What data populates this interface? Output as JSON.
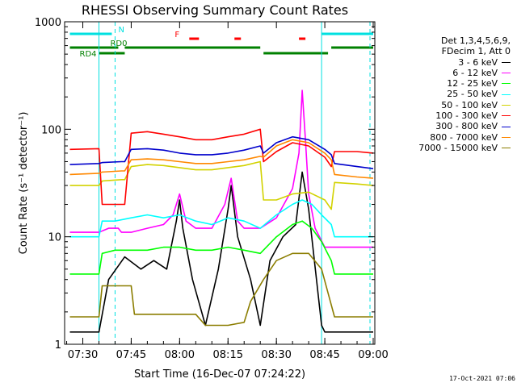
{
  "chart_data": {
    "type": "line",
    "title": "RHESSI Observing Summary Count Rates",
    "xlabel": "Start Time (16-Dec-07 07:24:22)",
    "ylabel": "Count Rate (s⁻¹ detector⁻¹)",
    "y_scale": "log",
    "ylim": [
      1,
      1000
    ],
    "xlim": [
      "07:24:22",
      "09:00:30"
    ],
    "x_ticks": [
      "07:30",
      "07:45",
      "08:00",
      "08:15",
      "08:30",
      "08:45",
      "09:00"
    ],
    "y_ticks": [
      "1",
      "10",
      "100",
      "1000"
    ],
    "grid": false,
    "legend_position": "right",
    "legend_header": [
      "Det 1,3,4,5,6,9,",
      "FDecim 1, Att 0"
    ],
    "series": [
      {
        "name": "3 - 6 keV",
        "color": "#000000",
        "x": [
          "07:26",
          "07:35",
          "07:38",
          "07:43",
          "07:48",
          "07:52",
          "07:56",
          "07:59",
          "08:00",
          "08:01",
          "08:04",
          "08:08",
          "08:12",
          "08:15",
          "08:16",
          "08:18",
          "08:22",
          "08:25",
          "08:28",
          "08:32",
          "08:36",
          "08:38",
          "08:40",
          "08:44",
          "08:45",
          "08:46",
          "08:50",
          "08:55",
          "09:00"
        ],
        "y": [
          1.3,
          1.3,
          4,
          6.5,
          5,
          6,
          5,
          14,
          22,
          12,
          4,
          1.5,
          5,
          18,
          30,
          10,
          4,
          1.5,
          6,
          10,
          13,
          40,
          18,
          1.5,
          1.3,
          1.3,
          1.3,
          1.3,
          1.3
        ]
      },
      {
        "name": "6 - 12 keV",
        "color": "#ff00ff",
        "x": [
          "07:26",
          "07:35",
          "07:38",
          "07:41",
          "07:42",
          "07:45",
          "07:50",
          "07:55",
          "07:58",
          "08:00",
          "08:02",
          "08:05",
          "08:10",
          "08:14",
          "08:16",
          "08:18",
          "08:20",
          "08:25",
          "08:30",
          "08:35",
          "08:37",
          "08:38",
          "08:39",
          "08:40",
          "08:42",
          "08:45",
          "08:47",
          "08:50",
          "09:00"
        ],
        "y": [
          11,
          11,
          12,
          12,
          11,
          11,
          12,
          13,
          16,
          25,
          14,
          12,
          12,
          20,
          35,
          14,
          12,
          12,
          15,
          28,
          60,
          230,
          80,
          25,
          12,
          8,
          8,
          8,
          8
        ]
      },
      {
        "name": "12 - 25 keV",
        "color": "#00ff00",
        "x": [
          "07:26",
          "07:35",
          "07:36",
          "07:40",
          "07:45",
          "07:50",
          "07:55",
          "08:00",
          "08:05",
          "08:10",
          "08:15",
          "08:20",
          "08:25",
          "08:30",
          "08:35",
          "08:38",
          "08:41",
          "08:44",
          "08:47",
          "08:48",
          "08:55",
          "09:00"
        ],
        "y": [
          4.5,
          4.5,
          7,
          7.5,
          7.5,
          7.5,
          8,
          8,
          7.5,
          7.5,
          8,
          7.5,
          7,
          10,
          13,
          14,
          12,
          9,
          6,
          4.5,
          4.5,
          4.5
        ]
      },
      {
        "name": "25 - 50 keV",
        "color": "#00ffff",
        "x": [
          "07:26",
          "07:35",
          "07:36",
          "07:40",
          "07:45",
          "07:50",
          "07:55",
          "08:00",
          "08:05",
          "08:10",
          "08:15",
          "08:20",
          "08:25",
          "08:30",
          "08:35",
          "08:38",
          "08:41",
          "08:44",
          "08:47",
          "08:48",
          "08:55",
          "09:00"
        ],
        "y": [
          10,
          10,
          14,
          14,
          15,
          16,
          15,
          16,
          14,
          13,
          15,
          14,
          12,
          16,
          20,
          22,
          20,
          16,
          13,
          10,
          10,
          10
        ]
      },
      {
        "name": "50 - 100 keV",
        "color": "#d2d200",
        "x": [
          "07:26",
          "07:35",
          "07:36",
          "07:42",
          "07:43",
          "07:45",
          "07:50",
          "07:55",
          "08:00",
          "08:05",
          "08:10",
          "08:15",
          "08:20",
          "08:25",
          "08:26",
          "08:30",
          "08:35",
          "08:40",
          "08:45",
          "08:47",
          "08:48",
          "08:55",
          "09:00"
        ],
        "y": [
          30,
          30,
          33,
          34,
          34,
          45,
          47,
          46,
          44,
          42,
          42,
          44,
          46,
          50,
          22,
          22,
          25,
          26,
          22,
          18,
          32,
          31,
          30
        ]
      },
      {
        "name": "100 - 300 keV",
        "color": "#ff0000",
        "x": [
          "07:26",
          "07:35",
          "07:36",
          "07:42",
          "07:43",
          "07:45",
          "07:50",
          "07:55",
          "08:00",
          "08:05",
          "08:10",
          "08:15",
          "08:20",
          "08:25",
          "08:26",
          "08:30",
          "08:35",
          "08:40",
          "08:45",
          "08:47",
          "08:48",
          "08:55",
          "09:00"
        ],
        "y": [
          65,
          66,
          20,
          20,
          20,
          92,
          95,
          90,
          85,
          80,
          80,
          85,
          90,
          100,
          50,
          62,
          75,
          70,
          55,
          45,
          62,
          62,
          60
        ]
      },
      {
        "name": "300 - 800 keV",
        "color": "#0000cc",
        "x": [
          "07:26",
          "07:35",
          "07:36",
          "07:42",
          "07:43",
          "07:45",
          "07:50",
          "07:55",
          "08:00",
          "08:05",
          "08:10",
          "08:15",
          "08:20",
          "08:25",
          "08:26",
          "08:30",
          "08:35",
          "08:40",
          "08:45",
          "08:47",
          "08:48",
          "08:55",
          "09:00"
        ],
        "y": [
          47,
          48,
          49,
          50,
          50,
          65,
          66,
          64,
          60,
          58,
          58,
          60,
          64,
          70,
          60,
          75,
          85,
          80,
          65,
          58,
          48,
          45,
          43
        ]
      },
      {
        "name": "800 - 7000 keV",
        "color": "#ff8800",
        "x": [
          "07:26",
          "07:35",
          "07:36",
          "07:42",
          "07:43",
          "07:45",
          "07:50",
          "07:55",
          "08:00",
          "08:05",
          "08:10",
          "08:15",
          "08:20",
          "08:25",
          "08:26",
          "08:30",
          "08:35",
          "08:40",
          "08:45",
          "08:47",
          "08:48",
          "08:55",
          "09:00"
        ],
        "y": [
          38,
          39,
          40,
          41,
          41,
          52,
          53,
          52,
          50,
          48,
          48,
          50,
          52,
          56,
          55,
          70,
          80,
          75,
          60,
          52,
          38,
          36,
          35
        ]
      },
      {
        "name": "7000 - 15000 keV",
        "color": "#8b7d00",
        "x": [
          "07:26",
          "07:35",
          "07:36",
          "07:45",
          "07:46",
          "07:50",
          "07:55",
          "08:00",
          "08:05",
          "08:08",
          "08:10",
          "08:15",
          "08:20",
          "08:22",
          "08:26",
          "08:30",
          "08:35",
          "08:40",
          "08:44",
          "08:46",
          "08:48",
          "08:55",
          "09:00"
        ],
        "y": [
          1.8,
          1.8,
          3.5,
          3.5,
          1.9,
          1.9,
          1.9,
          1.9,
          1.9,
          1.5,
          1.5,
          1.5,
          1.6,
          2.5,
          4,
          6,
          7,
          7,
          5,
          3,
          1.8,
          1.8,
          1.8
        ]
      }
    ],
    "annotations": [
      {
        "label": "N",
        "color": "#00e0e0",
        "ranges": [
          [
            "07:26",
            "07:39"
          ],
          [
            "08:44",
            "09:00"
          ]
        ]
      },
      {
        "label": "F",
        "color": "#ff0000",
        "ranges": [
          [
            "08:03",
            "08:06"
          ],
          [
            "08:17",
            "08:19"
          ],
          [
            "08:37",
            "08:39"
          ]
        ]
      },
      {
        "label": "RD0",
        "color": "#008000",
        "ranges": [
          [
            "07:26",
            "07:41"
          ]
        ]
      },
      {
        "label": "RD4",
        "color": "#008000",
        "ranges": [
          [
            "07:35",
            "07:43"
          ]
        ]
      }
    ],
    "extra_green_bars": [
      [
        "07:43",
        "08:25"
      ],
      [
        "08:26",
        "08:46"
      ],
      [
        "08:47",
        "09:00"
      ]
    ],
    "vlines_solid": [
      "07:35",
      "08:44"
    ],
    "vlines_dashed": [
      "07:40",
      "08:59"
    ]
  },
  "footer": {
    "stamp": "17-Oct-2021 07:06"
  }
}
